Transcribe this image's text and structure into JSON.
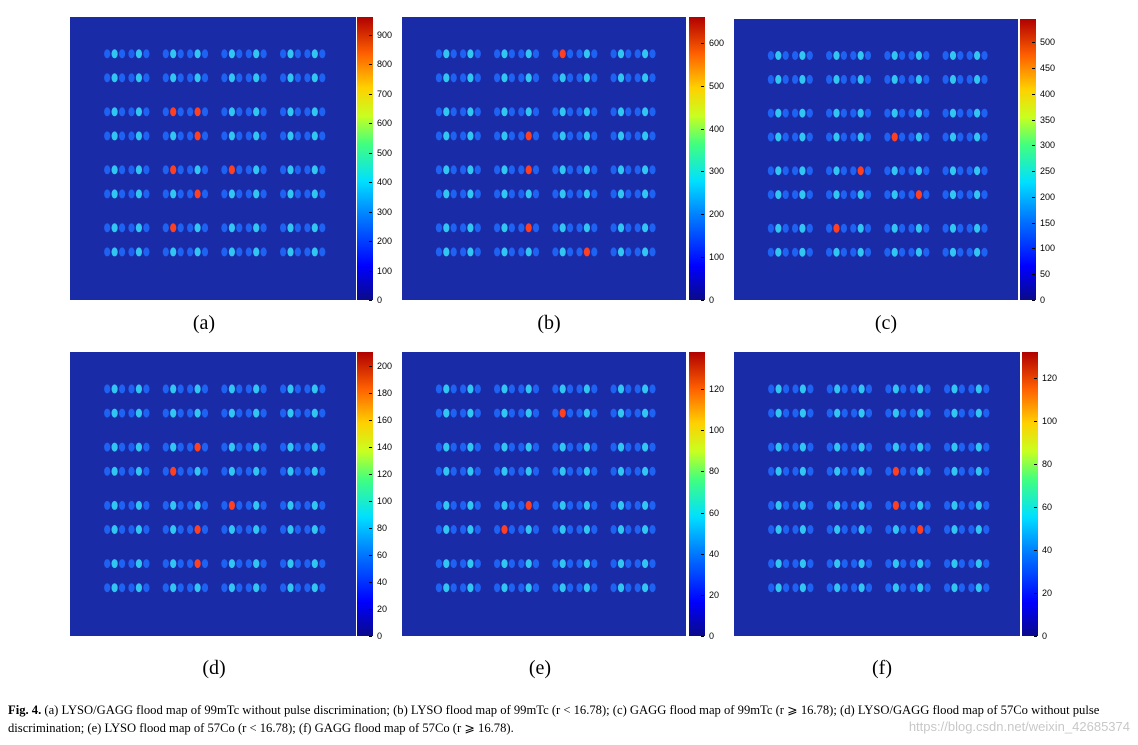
{
  "panels": [
    {
      "label": "(a)",
      "ticks": [
        "0",
        "100",
        "200",
        "300",
        "400",
        "500",
        "600",
        "700",
        "800",
        "900"
      ],
      "max": 960,
      "hot": [
        [
          2,
          2
        ],
        [
          2,
          3
        ],
        [
          3,
          3
        ],
        [
          4,
          2
        ],
        [
          4,
          4
        ],
        [
          5,
          3
        ],
        [
          6,
          2
        ]
      ]
    },
    {
      "label": "(b)",
      "ticks": [
        "0",
        "100",
        "200",
        "300",
        "400",
        "500",
        "600"
      ],
      "max": 660,
      "hot": [
        [
          0,
          4
        ],
        [
          3,
          3
        ],
        [
          4,
          3
        ],
        [
          6,
          3
        ],
        [
          7,
          5
        ]
      ]
    },
    {
      "label": "(c)",
      "ticks": [
        "0",
        "50",
        "100",
        "150",
        "200",
        "250",
        "300",
        "350",
        "400",
        "450",
        "500"
      ],
      "max": 545,
      "hot": [
        [
          3,
          4
        ],
        [
          4,
          3
        ],
        [
          5,
          5
        ],
        [
          6,
          2
        ]
      ]
    },
    {
      "label": "(d)",
      "ticks": [
        "0",
        "20",
        "40",
        "60",
        "80",
        "100",
        "120",
        "140",
        "160",
        "180",
        "200"
      ],
      "max": 210,
      "hot": [
        [
          2,
          3
        ],
        [
          3,
          2
        ],
        [
          4,
          4
        ],
        [
          5,
          3
        ],
        [
          6,
          3
        ]
      ]
    },
    {
      "label": "(e)",
      "ticks": [
        "0",
        "20",
        "40",
        "60",
        "80",
        "100",
        "120"
      ],
      "max": 138,
      "hot": [
        [
          1,
          4
        ],
        [
          4,
          3
        ],
        [
          5,
          2
        ]
      ]
    },
    {
      "label": "(f)",
      "ticks": [
        "0",
        "20",
        "40",
        "60",
        "80",
        "100",
        "120"
      ],
      "max": 132,
      "hot": [
        [
          3,
          4
        ],
        [
          4,
          4
        ],
        [
          5,
          5
        ]
      ]
    }
  ],
  "caption": {
    "fig": "Fig. 4.",
    "text": "(a) LYSO/GAGG flood map of 99mTc without pulse discrimination; (b) LYSO flood map of 99mTc (r < 16.78); (c) GAGG flood map of 99mTc (r ⩾ 16.78); (d) LYSO/GAGG flood map of 57Co without pulse discrimination; (e) LYSO flood map of 57Co (r < 16.78); (f) GAGG flood map of 57Co (r ⩾ 16.78)."
  },
  "watermark": "https://blog.csdn.net/weixin_42685374",
  "colors": {
    "background_map": "#1a2ba8",
    "spot_low": "#1e6cff",
    "spot_mid": "#36e2ff",
    "spot_hot": "#ff4020"
  }
}
